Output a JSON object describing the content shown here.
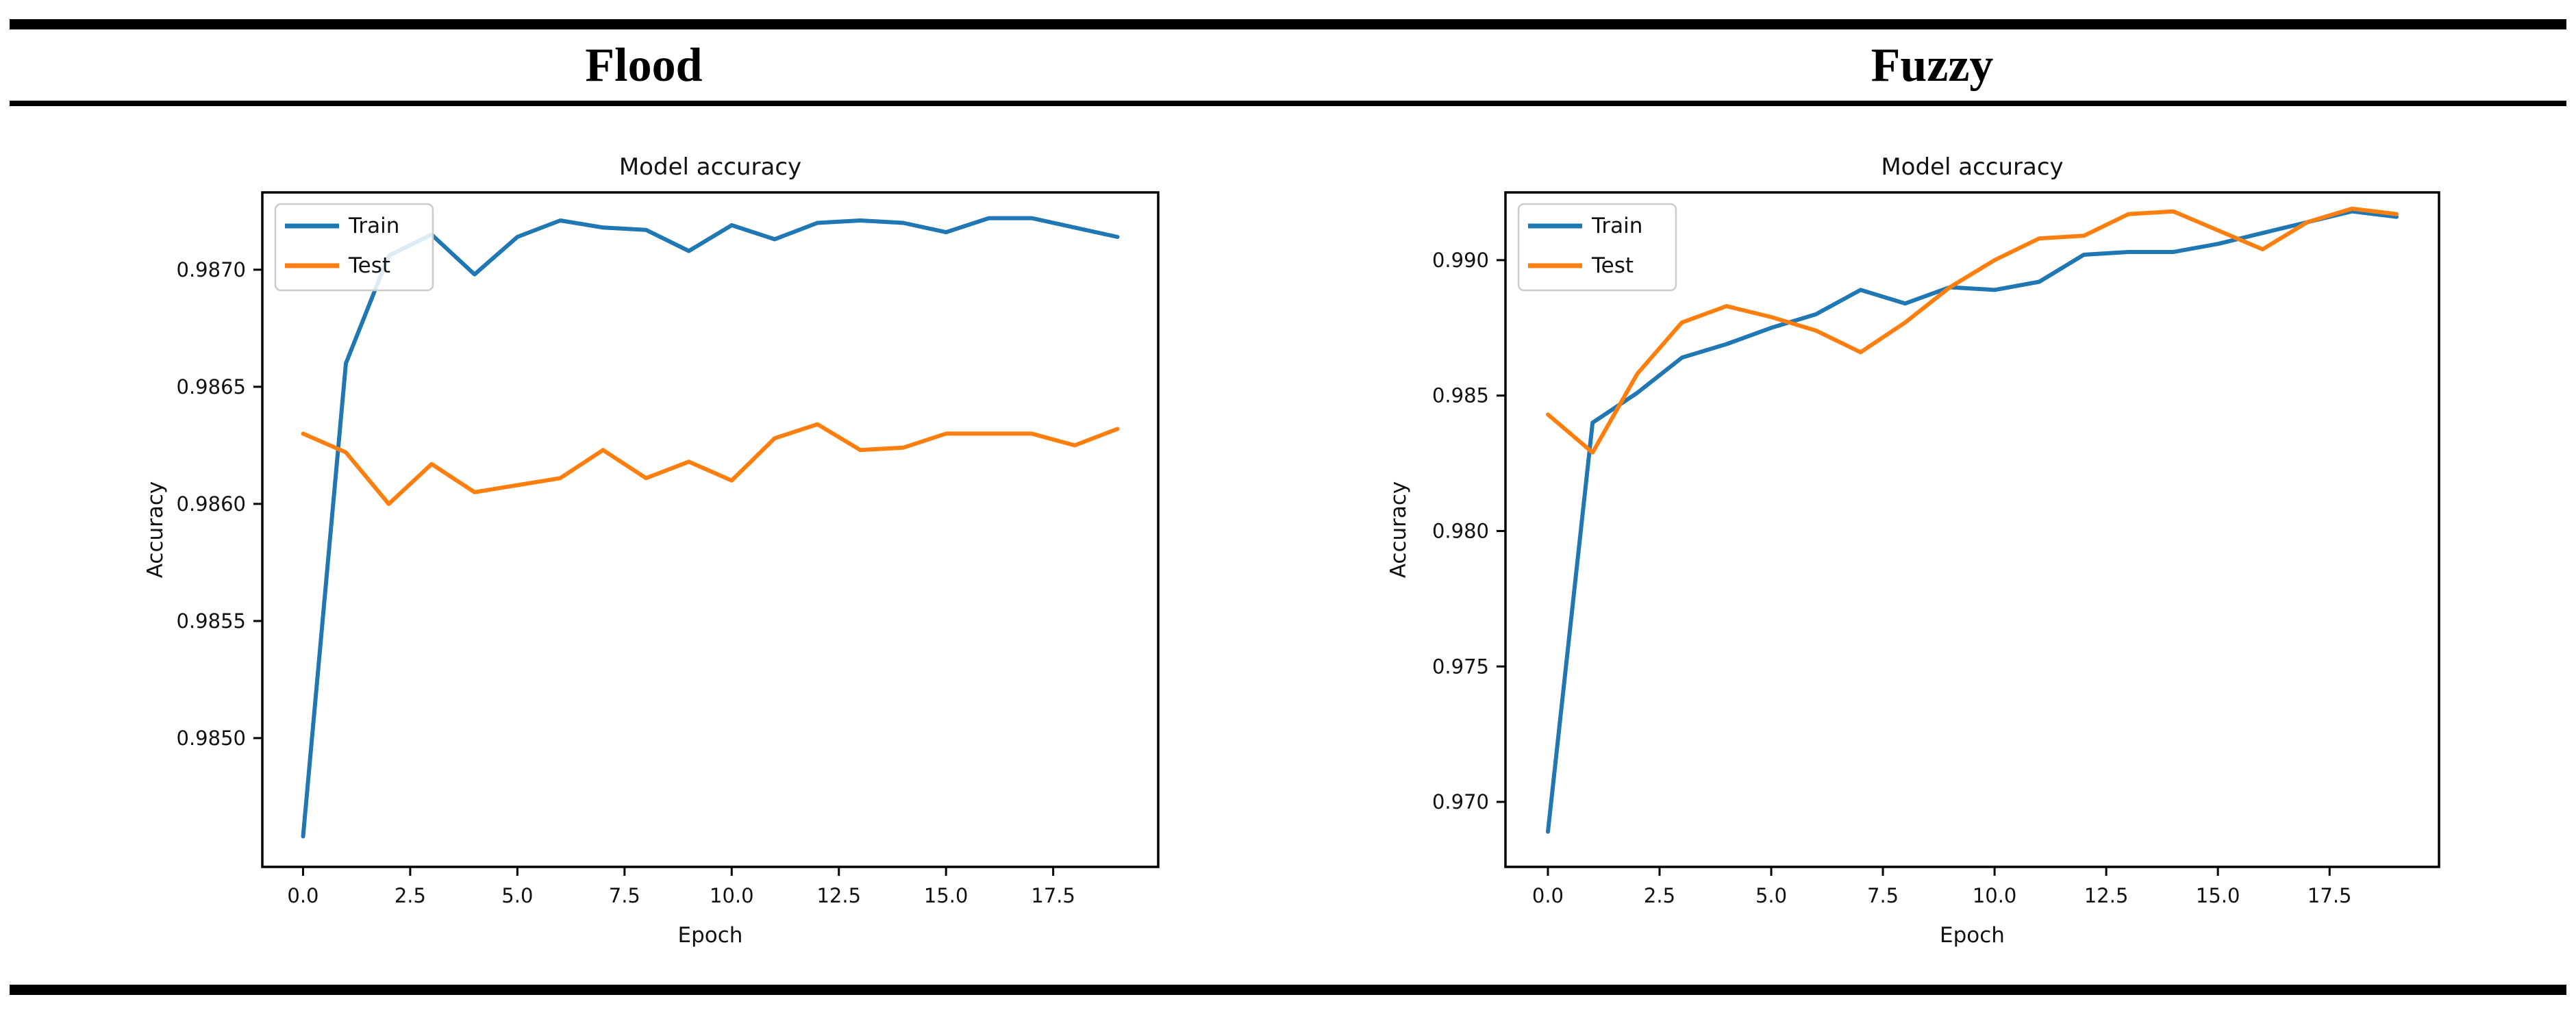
{
  "table": {
    "columns": [
      {
        "label": "Flood"
      },
      {
        "label": "Fuzzy"
      }
    ]
  },
  "colors": {
    "train": "#1f77b4",
    "test": "#ff7f0e",
    "text": "#111111",
    "axis": "#000000",
    "legend_border": "#cccccc",
    "rule": "#000000"
  },
  "chart_data": [
    {
      "type": "line",
      "title": "Model accuracy",
      "xlabel": "Epoch",
      "ylabel": "Accuracy",
      "grid": false,
      "legend_position": "upper left",
      "x": [
        0,
        1,
        2,
        3,
        4,
        5,
        6,
        7,
        8,
        9,
        10,
        11,
        12,
        13,
        14,
        15,
        16,
        17,
        18,
        19
      ],
      "series": [
        {
          "name": "Train",
          "color_key": "train",
          "values": [
            0.98458,
            0.9866,
            0.98706,
            0.98715,
            0.98698,
            0.98714,
            0.98721,
            0.98718,
            0.98717,
            0.98708,
            0.98719,
            0.98713,
            0.9872,
            0.98721,
            0.9872,
            0.98716,
            0.98722,
            0.98722,
            0.98718,
            0.98714
          ]
        },
        {
          "name": "Test",
          "color_key": "test",
          "values": [
            0.9863,
            0.98622,
            0.986,
            0.98617,
            0.98605,
            0.98608,
            0.98611,
            0.98623,
            0.98611,
            0.98618,
            0.9861,
            0.98628,
            0.98634,
            0.98623,
            0.98624,
            0.9863,
            0.9863,
            0.9863,
            0.98625,
            0.98632
          ]
        }
      ],
      "xlim": [
        -0.95,
        19.95
      ],
      "ylim": [
        0.98445,
        0.98733
      ],
      "xticks": [
        0,
        2.5,
        5,
        7.5,
        10,
        12.5,
        15,
        17.5
      ],
      "xtick_labels": [
        "0.0",
        "2.5",
        "5.0",
        "7.5",
        "10.0",
        "12.5",
        "15.0",
        "17.5"
      ],
      "yticks": [
        0.985,
        0.9855,
        0.986,
        0.9865,
        0.987
      ],
      "ytick_labels": [
        "0.9850",
        "0.9855",
        "0.9860",
        "0.9865",
        "0.9870"
      ]
    },
    {
      "type": "line",
      "title": "Model accuracy",
      "xlabel": "Epoch",
      "ylabel": "Accuracy",
      "grid": false,
      "legend_position": "upper left",
      "x": [
        0,
        1,
        2,
        3,
        4,
        5,
        6,
        7,
        8,
        9,
        10,
        11,
        12,
        13,
        14,
        15,
        16,
        17,
        18,
        19
      ],
      "series": [
        {
          "name": "Train",
          "color_key": "train",
          "values": [
            0.9689,
            0.984,
            0.9851,
            0.9864,
            0.9869,
            0.9875,
            0.988,
            0.9889,
            0.9884,
            0.989,
            0.9889,
            0.9892,
            0.9902,
            0.9903,
            0.9903,
            0.9906,
            0.991,
            0.9914,
            0.9918,
            0.9916
          ]
        },
        {
          "name": "Test",
          "color_key": "test",
          "values": [
            0.9843,
            0.9829,
            0.9858,
            0.9877,
            0.9883,
            0.9879,
            0.9874,
            0.9866,
            0.9877,
            0.989,
            0.99,
            0.9908,
            0.9909,
            0.9917,
            0.9918,
            0.9911,
            0.9904,
            0.9914,
            0.9919,
            0.9917
          ]
        }
      ],
      "xlim": [
        -0.95,
        19.95
      ],
      "ylim": [
        0.9676,
        0.9925
      ],
      "xticks": [
        0,
        2.5,
        5,
        7.5,
        10,
        12.5,
        15,
        17.5
      ],
      "xtick_labels": [
        "0.0",
        "2.5",
        "5.0",
        "7.5",
        "10.0",
        "12.5",
        "15.0",
        "17.5"
      ],
      "yticks": [
        0.97,
        0.975,
        0.98,
        0.985,
        0.99
      ],
      "ytick_labels": [
        "0.970",
        "0.975",
        "0.980",
        "0.985",
        "0.990"
      ]
    }
  ]
}
